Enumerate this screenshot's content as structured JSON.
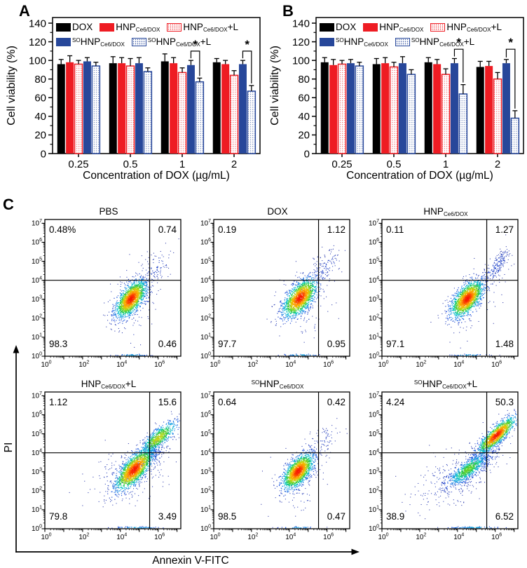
{
  "panels": {
    "a": {
      "label": "A"
    },
    "b": {
      "label": "B"
    },
    "c": {
      "label": "C"
    }
  },
  "colors": {
    "black": "#000000",
    "red": "#ee1c23",
    "blue": "#27479a",
    "axis": "#000000",
    "star": "#000000"
  },
  "chart_data": {
    "bar_charts": [
      {
        "type": "bar",
        "panel": "A",
        "ylabel": "Cell viability (%)",
        "xlabel": "Concentration of DOX (µg/mL)",
        "y_ticks": [
          0,
          20,
          40,
          60,
          80,
          100,
          120,
          140
        ],
        "ylim": [
          0,
          146
        ],
        "categories": [
          "0.25",
          "0.5",
          "1",
          "2"
        ],
        "series": [
          {
            "name": {
              "main": "DOX"
            },
            "color": "#000000",
            "fill": "solid",
            "values": [
              96,
              97,
              99,
              98
            ],
            "errors": [
              5,
              7,
              8,
              4
            ]
          },
          {
            "name": {
              "main": "HNP",
              "sub": "Ce6/DOX"
            },
            "color": "#ee1c23",
            "fill": "solid",
            "values": [
              98,
              97,
              97,
              96
            ],
            "errors": [
              7,
              6,
              6,
              4
            ]
          },
          {
            "name": {
              "main": "HNP",
              "sub": "Ce6/DOX",
              "suffix": "+L"
            },
            "color": "#ee1c23",
            "fill": "dots",
            "values": [
              96,
              94,
              87,
              84
            ],
            "errors": [
              4,
              8,
              5,
              5
            ]
          },
          {
            "name": {
              "sup": "SO",
              "main": "HNP",
              "sub": "Ce6/DOX"
            },
            "color": "#27479a",
            "fill": "solid",
            "values": [
              99,
              97,
              95,
              96
            ],
            "errors": [
              4,
              6,
              5,
              4
            ]
          },
          {
            "name": {
              "sup": "SO",
              "main": "HNP",
              "sub": "Ce6/DOX",
              "suffix": "+L"
            },
            "color": "#27479a",
            "fill": "dots",
            "values": [
              94,
              88,
              77,
              67
            ],
            "errors": [
              4,
              4,
              4,
              6
            ]
          }
        ],
        "significance": [
          {
            "category_index": 2,
            "between": [
              3,
              4
            ],
            "label": "*"
          },
          {
            "category_index": 3,
            "between": [
              3,
              4
            ],
            "label": "*"
          }
        ],
        "bracket_y": 110
      },
      {
        "type": "bar",
        "panel": "B",
        "ylabel": "Cell viability (%)",
        "xlabel": "Concentration of DOX (µg/mL)",
        "y_ticks": [
          0,
          20,
          40,
          60,
          80,
          100,
          120,
          140
        ],
        "ylim": [
          0,
          146
        ],
        "categories": [
          "0.25",
          "0.5",
          "1",
          "2"
        ],
        "series": [
          {
            "name": {
              "main": "DOX"
            },
            "color": "#000000",
            "fill": "solid",
            "values": [
              98,
              96,
              98,
              93
            ],
            "errors": [
              5,
              6,
              5,
              6
            ]
          },
          {
            "name": {
              "main": "HNP",
              "sub": "Ce6/DOX"
            },
            "color": "#ee1c23",
            "fill": "solid",
            "values": [
              95,
              97,
              96,
              94
            ],
            "errors": [
              6,
              6,
              5,
              5
            ]
          },
          {
            "name": {
              "main": "HNP",
              "sub": "Ce6/DOX",
              "suffix": "+L"
            },
            "color": "#ee1c23",
            "fill": "dots",
            "values": [
              96,
              93,
              85,
              80
            ],
            "errors": [
              4,
              5,
              6,
              7
            ]
          },
          {
            "name": {
              "sup": "SO",
              "main": "HNP",
              "sub": "Ce6/DOX"
            },
            "color": "#27479a",
            "fill": "solid",
            "values": [
              97,
              97,
              97,
              97
            ],
            "errors": [
              4,
              7,
              5,
              4
            ]
          },
          {
            "name": {
              "sup": "SO",
              "main": "HNP",
              "sub": "Ce6/DOX",
              "suffix": "+L"
            },
            "color": "#27479a",
            "fill": "dots",
            "values": [
              94,
              85,
              64,
              38
            ],
            "errors": [
              4,
              5,
              10,
              8
            ]
          }
        ],
        "significance": [
          {
            "category_index": 2,
            "between": [
              3,
              4
            ],
            "label": "*"
          },
          {
            "category_index": 3,
            "between": [
              3,
              4
            ],
            "label": "*"
          }
        ],
        "bracket_y": 112
      }
    ],
    "flow": {
      "type": "scatter",
      "xlabel": "Annexin V-FITC",
      "ylabel": "PI",
      "x_tick_exponents": [
        0,
        2,
        4,
        6
      ],
      "y_tick_exponents": [
        0,
        1,
        2,
        3,
        4,
        5,
        6,
        7
      ],
      "axis_max_decade": 7.2,
      "gate_x_decade": 5.55,
      "gate_y_decade": 4.0,
      "plots": [
        {
          "title": {
            "main": "PBS"
          },
          "seed": 11,
          "quadrants": {
            "tl": "0.48%",
            "tr": "0.74",
            "bl": "98.3",
            "br": "0.46"
          },
          "clusters": [
            [
              4.55,
              3.0,
              0.4,
              0.48,
              0.6,
              1500,
              1.0
            ],
            [
              4.7,
              3.2,
              0.8,
              0.95,
              0.5,
              150,
              0.1
            ],
            [
              5.85,
              4.6,
              0.4,
              0.45,
              0.6,
              85,
              0.1
            ],
            [
              4.6,
              0.04,
              0.5,
              0.025,
              0,
              45,
              0.35
            ],
            [
              4.8,
              1.6,
              0.4,
              0.5,
              0,
              20,
              0.08
            ]
          ]
        },
        {
          "title": {
            "main": "DOX"
          },
          "seed": 22,
          "quadrants": {
            "tl": "0.19",
            "tr": "1.12",
            "bl": "97.7",
            "br": "0.95"
          },
          "clusters": [
            [
              4.55,
              3.05,
              0.44,
              0.5,
              0.6,
              1500,
              1.0
            ],
            [
              4.7,
              3.2,
              0.85,
              0.95,
              0.5,
              160,
              0.1
            ],
            [
              5.9,
              4.65,
              0.45,
              0.5,
              0.6,
              100,
              0.1
            ],
            [
              4.6,
              0.04,
              0.55,
              0.025,
              0,
              50,
              0.35
            ],
            [
              4.9,
              1.7,
              0.45,
              0.5,
              0,
              25,
              0.08
            ]
          ]
        },
        {
          "title": {
            "main": "HNP",
            "sub": "Ce6/DOX"
          },
          "seed": 33,
          "quadrants": {
            "tl": "0.11",
            "tr": "1.27",
            "bl": "97.1",
            "br": "1.48"
          },
          "clusters": [
            [
              4.5,
              3.0,
              0.42,
              0.48,
              0.6,
              1500,
              1.0
            ],
            [
              4.65,
              3.15,
              0.8,
              0.9,
              0.5,
              150,
              0.1
            ],
            [
              5.9,
              4.5,
              0.45,
              0.55,
              0.8,
              130,
              0.12
            ],
            [
              6.2,
              5.0,
              0.3,
              0.35,
              0.7,
              60,
              0.1
            ],
            [
              4.6,
              0.04,
              0.5,
              0.025,
              0,
              45,
              0.35
            ]
          ]
        },
        {
          "title": {
            "main": "HNP",
            "sub": "Ce6/DOX",
            "suffix": "+L"
          },
          "seed": 44,
          "quadrants": {
            "tl": "1.12",
            "tr": "15.6",
            "bl": "79.8",
            "br": "3.49"
          },
          "clusters": [
            [
              4.72,
              3.1,
              0.5,
              0.55,
              0.72,
              1500,
              1.0
            ],
            [
              6.0,
              4.75,
              0.5,
              0.45,
              0.8,
              600,
              0.72
            ],
            [
              5.5,
              3.9,
              0.55,
              0.6,
              0.7,
              220,
              0.15
            ],
            [
              4.4,
              2.7,
              1.0,
              0.85,
              0.35,
              260,
              0.09
            ],
            [
              4.9,
              0.04,
              0.7,
              0.025,
              0,
              70,
              0.35
            ]
          ]
        },
        {
          "title": {
            "sup": "SO",
            "main": "HNP",
            "sub": "Ce6/DOX"
          },
          "seed": 55,
          "quadrants": {
            "tl": "0.64",
            "tr": "0.42",
            "bl": "98.5",
            "br": "0.47"
          },
          "clusters": [
            [
              4.45,
              3.0,
              0.4,
              0.46,
              0.6,
              1500,
              1.0
            ],
            [
              4.6,
              3.15,
              0.75,
              0.9,
              0.5,
              140,
              0.1
            ],
            [
              5.75,
              4.55,
              0.45,
              0.5,
              0.6,
              70,
              0.09
            ],
            [
              4.5,
              0.04,
              0.5,
              0.025,
              0,
              40,
              0.35
            ],
            [
              4.7,
              1.6,
              0.4,
              0.5,
              0,
              18,
              0.08
            ]
          ]
        },
        {
          "title": {
            "sup": "SO",
            "main": "HNP",
            "sub": "Ce6/DOX",
            "suffix": "+L"
          },
          "seed": 66,
          "quadrants": {
            "tl": "4.24",
            "tr": "50.3",
            "bl": "38.9",
            "br": "6.52"
          },
          "clusters": [
            [
              4.55,
              3.1,
              0.52,
              0.42,
              0.8,
              750,
              0.62
            ],
            [
              6.05,
              4.9,
              0.5,
              0.48,
              0.85,
              1100,
              1.0
            ],
            [
              5.4,
              3.9,
              0.7,
              0.8,
              0.7,
              320,
              0.16
            ],
            [
              3.4,
              2.4,
              0.95,
              0.75,
              0.4,
              200,
              0.08
            ],
            [
              4.9,
              0.04,
              0.8,
              0.025,
              0,
              80,
              0.35
            ]
          ]
        }
      ]
    }
  }
}
